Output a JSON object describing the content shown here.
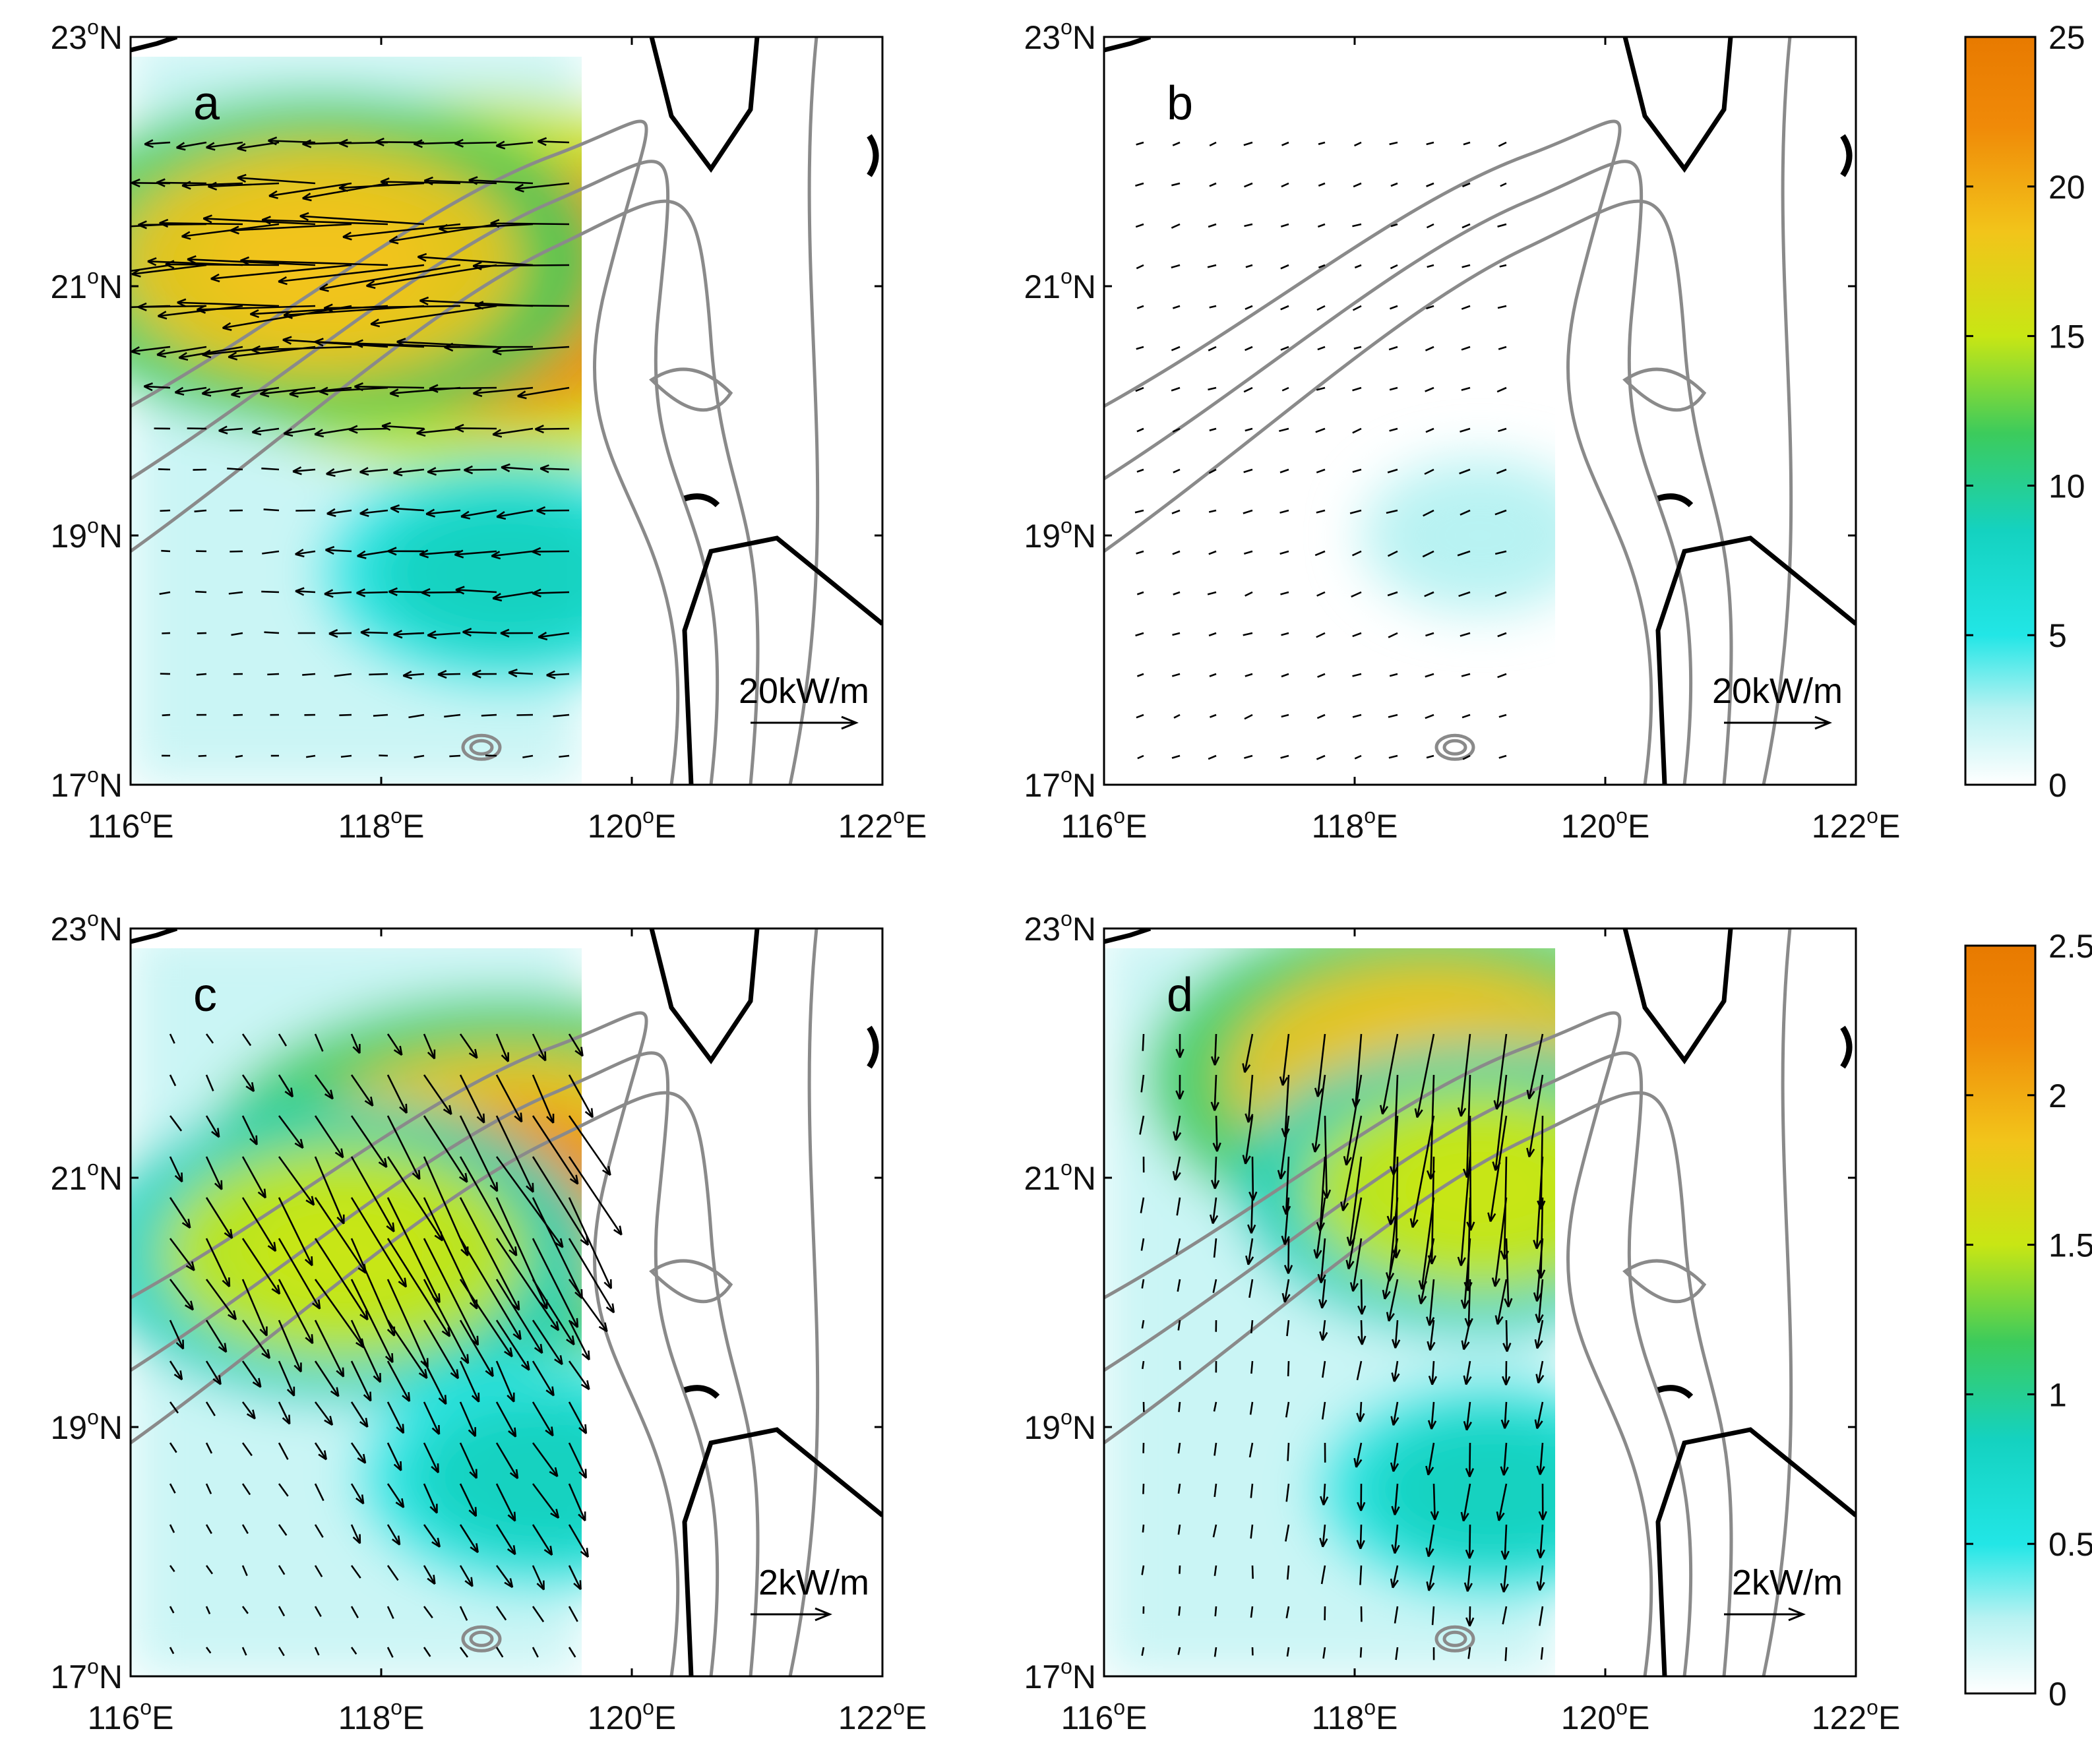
{
  "figure": {
    "panels": [
      {
        "letter": "a",
        "scale_label": "20kW/m",
        "colorbar_group": "top"
      },
      {
        "letter": "b",
        "scale_label": "20kW/m",
        "colorbar_group": "top"
      },
      {
        "letter": "c",
        "scale_label": "2kW/m",
        "colorbar_group": "bottom"
      },
      {
        "letter": "d",
        "scale_label": "2kW/m",
        "colorbar_group": "bottom"
      }
    ],
    "x_ticks": [
      {
        "deg": "116",
        "unit": "E"
      },
      {
        "deg": "118",
        "unit": "E"
      },
      {
        "deg": "120",
        "unit": "E"
      },
      {
        "deg": "122",
        "unit": "E"
      }
    ],
    "y_ticks": [
      {
        "deg": "17",
        "unit": "N"
      },
      {
        "deg": "19",
        "unit": "N"
      },
      {
        "deg": "21",
        "unit": "N"
      },
      {
        "deg": "23",
        "unit": "N"
      }
    ],
    "degree_symbol": "o",
    "colorbars": {
      "top": {
        "ticks": [
          "0",
          "5",
          "10",
          "15",
          "20",
          "25"
        ]
      },
      "bottom": {
        "ticks": [
          "0",
          "0.5",
          "1",
          "1.5",
          "2",
          "2.5"
        ]
      }
    },
    "colormap": [
      "#ffffff",
      "#b8f2f2",
      "#22e6e6",
      "#14d2c0",
      "#3ccb5c",
      "#c8e614",
      "#f2c41a",
      "#f08a08",
      "#e87a00"
    ],
    "colors": {
      "contour": "#8a8a8a",
      "coastline": "#000000",
      "arrow": "#000000"
    }
  },
  "chart_data": [
    {
      "type": "heatmap",
      "panel": "a",
      "xlim": [
        116,
        122
      ],
      "ylim": [
        17,
        23
      ],
      "colorbar_range": [
        0,
        25
      ],
      "vector_scale_reference": "20kW/m",
      "domain_east_edge_lon": 119.6,
      "hotspots": [
        {
          "lon": 118.8,
          "lat": 21.0,
          "magnitude": 22
        },
        {
          "lon": 117.5,
          "lat": 21.2,
          "magnitude": 18
        },
        {
          "lon": 119.0,
          "lat": 18.7,
          "magnitude": 8
        }
      ],
      "dominant_flux_direction_deg": 183
    },
    {
      "type": "heatmap",
      "panel": "b",
      "xlim": [
        116,
        122
      ],
      "ylim": [
        17,
        23
      ],
      "colorbar_range": [
        0,
        25
      ],
      "vector_scale_reference": "20kW/m",
      "domain_east_edge_lon": 119.6,
      "hotspots": [
        {
          "lon": 119.0,
          "lat": 19.0,
          "magnitude": 1
        }
      ],
      "dominant_flux_direction_deg": 200
    },
    {
      "type": "heatmap",
      "panel": "c",
      "xlim": [
        116,
        122
      ],
      "ylim": [
        17,
        23
      ],
      "colorbar_range": [
        0,
        2.5
      ],
      "vector_scale_reference": "2kW/m",
      "domain_east_edge_lon": 119.6,
      "hotspots": [
        {
          "lon": 119.0,
          "lat": 21.0,
          "magnitude": 2.1
        },
        {
          "lon": 117.7,
          "lat": 20.4,
          "magnitude": 1.5
        },
        {
          "lon": 119.3,
          "lat": 18.6,
          "magnitude": 0.8
        }
      ],
      "dominant_flux_direction_deg": 300
    },
    {
      "type": "heatmap",
      "panel": "d",
      "xlim": [
        116,
        122
      ],
      "ylim": [
        17,
        23
      ],
      "colorbar_range": [
        0,
        2.5
      ],
      "vector_scale_reference": "2kW/m",
      "domain_east_edge_lon": 119.6,
      "hotspots": [
        {
          "lon": 118.6,
          "lat": 21.8,
          "magnitude": 1.8
        },
        {
          "lon": 119.0,
          "lat": 20.9,
          "magnitude": 1.4
        },
        {
          "lon": 119.1,
          "lat": 18.5,
          "magnitude": 0.7
        }
      ],
      "dominant_flux_direction_deg": 265
    }
  ]
}
